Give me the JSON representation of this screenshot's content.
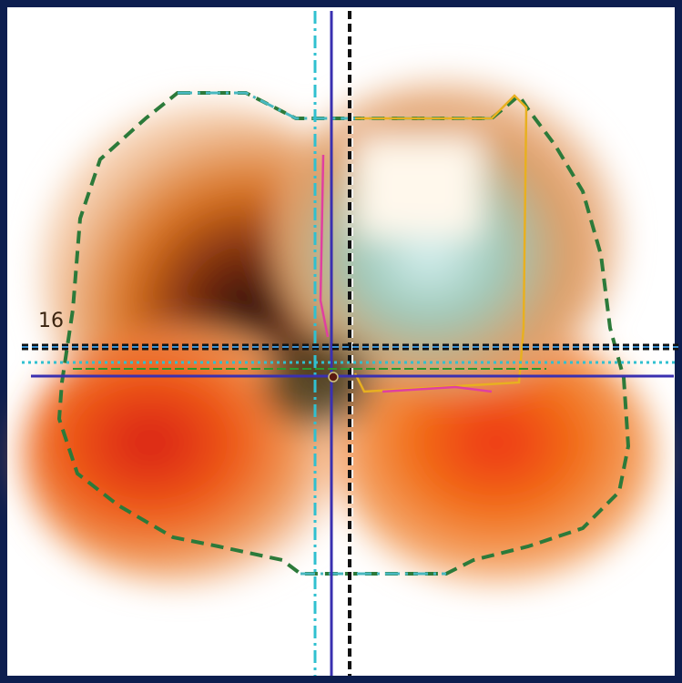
{
  "label": "16"
}
